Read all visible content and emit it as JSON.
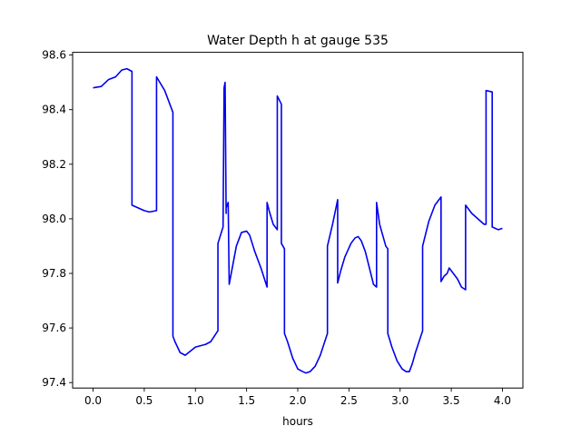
{
  "chart_data": {
    "type": "line",
    "title": "Water Depth h at gauge 535",
    "xlabel": "hours",
    "ylabel": "",
    "xlim": [
      -0.2,
      4.2
    ],
    "ylim": [
      97.38,
      98.61
    ],
    "grid": false,
    "x_ticks": [
      "0.0",
      "0.5",
      "1.0",
      "1.5",
      "2.0",
      "2.5",
      "3.0",
      "3.5",
      "4.0"
    ],
    "y_ticks": [
      "97.4",
      "97.6",
      "97.8",
      "98.0",
      "98.2",
      "98.4",
      "98.6"
    ],
    "series": [
      {
        "color": "#0000ee",
        "x": [
          0.0,
          0.08,
          0.15,
          0.22,
          0.28,
          0.33,
          0.38,
          0.38,
          0.5,
          0.55,
          0.62,
          0.62,
          0.7,
          0.78,
          0.78,
          0.8,
          0.85,
          0.9,
          0.95,
          1.0,
          1.05,
          1.1,
          1.15,
          1.22,
          1.22,
          1.27,
          1.28,
          1.29,
          1.3,
          1.3,
          1.32,
          1.33,
          1.33,
          1.35,
          1.4,
          1.45,
          1.5,
          1.53,
          1.58,
          1.64,
          1.7,
          1.7,
          1.72,
          1.76,
          1.8,
          1.8,
          1.84,
          1.84,
          1.87,
          1.87,
          1.9,
          1.95,
          2.0,
          2.05,
          2.08,
          2.12,
          2.17,
          2.22,
          2.29,
          2.29,
          2.34,
          2.39,
          2.39,
          2.42,
          2.46,
          2.52,
          2.56,
          2.59,
          2.62,
          2.66,
          2.7,
          2.74,
          2.77,
          2.77,
          2.8,
          2.86,
          2.88,
          2.88,
          2.92,
          2.97,
          3.02,
          3.06,
          3.09,
          3.12,
          3.15,
          3.22,
          3.22,
          3.28,
          3.34,
          3.4,
          3.4,
          3.43,
          3.46,
          3.48,
          3.52,
          3.56,
          3.6,
          3.64,
          3.64,
          3.7,
          3.76,
          3.82,
          3.84,
          3.84,
          3.9,
          3.9,
          3.96,
          4.0
        ],
        "y": [
          98.48,
          98.485,
          98.51,
          98.52,
          98.545,
          98.55,
          98.54,
          98.05,
          98.03,
          98.025,
          98.03,
          98.52,
          98.47,
          98.39,
          97.57,
          97.55,
          97.51,
          97.5,
          97.515,
          97.53,
          97.535,
          97.54,
          97.55,
          97.59,
          97.91,
          97.97,
          98.48,
          98.5,
          98.02,
          98.04,
          98.06,
          97.76,
          97.76,
          97.8,
          97.9,
          97.95,
          97.955,
          97.94,
          97.88,
          97.82,
          97.75,
          98.06,
          98.03,
          97.98,
          97.96,
          98.45,
          98.42,
          97.91,
          97.89,
          97.58,
          97.55,
          97.49,
          97.45,
          97.44,
          97.435,
          97.44,
          97.46,
          97.5,
          97.58,
          97.9,
          97.98,
          98.07,
          97.765,
          97.81,
          97.86,
          97.91,
          97.93,
          97.935,
          97.92,
          97.88,
          97.82,
          97.76,
          97.75,
          98.06,
          97.98,
          97.9,
          97.89,
          97.58,
          97.53,
          97.48,
          97.45,
          97.44,
          97.44,
          97.47,
          97.51,
          97.59,
          97.9,
          97.99,
          98.05,
          98.08,
          97.77,
          97.79,
          97.8,
          97.82,
          97.8,
          97.78,
          97.75,
          97.74,
          98.05,
          98.02,
          98.0,
          97.98,
          97.98,
          98.47,
          98.465,
          97.97,
          97.96,
          97.965
        ]
      }
    ]
  }
}
